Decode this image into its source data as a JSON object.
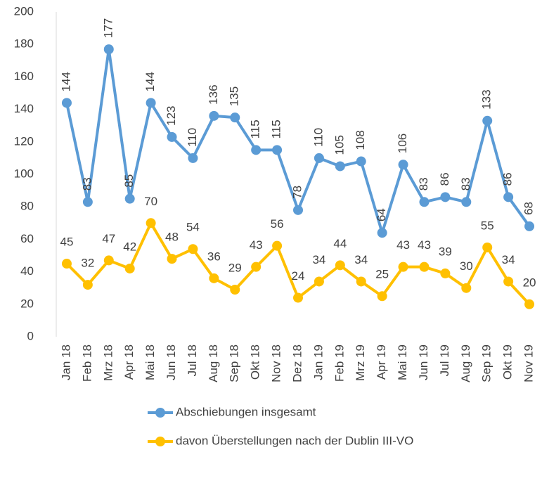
{
  "chart_data": {
    "type": "line",
    "categories": [
      "Jan 18",
      "Feb 18",
      "Mrz 18",
      "Apr 18",
      "Mai 18",
      "Jun 18",
      "Jul 18",
      "Aug 18",
      "Sep 18",
      "Okt 18",
      "Nov 18",
      "Dez 18",
      "Jan 19",
      "Feb 19",
      "Mrz 19",
      "Apr 19",
      "Mai 19",
      "Jun 19",
      "Jul 19",
      "Aug 19",
      "Sep 19",
      "Okt 19",
      "Nov 19"
    ],
    "series": [
      {
        "name": "Abschiebungen insgesamt",
        "color": "#5b9bd5",
        "values": [
          144,
          83,
          177,
          85,
          144,
          123,
          110,
          136,
          135,
          115,
          115,
          78,
          110,
          105,
          108,
          64,
          106,
          83,
          86,
          83,
          133,
          86,
          68
        ]
      },
      {
        "name": "davon Überstellungen nach der Dublin III-VO",
        "color": "#ffc000",
        "values": [
          45,
          32,
          47,
          42,
          70,
          48,
          54,
          36,
          29,
          43,
          56,
          24,
          34,
          44,
          34,
          25,
          43,
          43,
          39,
          30,
          55,
          34,
          20
        ]
      }
    ],
    "ylim": [
      0,
      200
    ],
    "yticks": [
      0,
      20,
      40,
      60,
      80,
      100,
      120,
      140,
      160,
      180,
      200
    ],
    "grid": false,
    "legend": "bottom"
  }
}
